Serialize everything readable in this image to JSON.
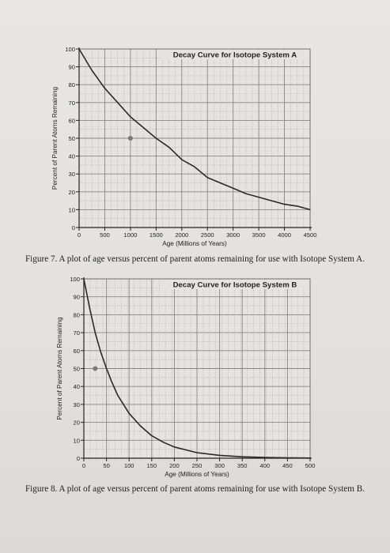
{
  "chart_data": [
    {
      "type": "line",
      "title": "Decay Curve for Isotope System A",
      "xlabel": "Age (Millions of Years)",
      "ylabel": "Percent of Parent Atoms Remaining",
      "xlim": [
        0,
        4500
      ],
      "ylim": [
        0,
        100
      ],
      "x_ticks": [
        "0",
        "500",
        "1000",
        "1500",
        "2000",
        "2500",
        "3000",
        "3500",
        "4000",
        "4500"
      ],
      "y_ticks": [
        "0",
        "10",
        "20",
        "30",
        "40",
        "50",
        "60",
        "70",
        "80",
        "90",
        "100"
      ],
      "grid": true,
      "x": [
        0,
        250,
        500,
        750,
        1000,
        1250,
        1500,
        1750,
        2000,
        2250,
        2500,
        2750,
        3000,
        3250,
        3500,
        3750,
        4000,
        4250,
        4500
      ],
      "y": [
        100,
        88,
        78,
        70,
        62,
        56,
        50,
        45,
        38,
        34,
        28,
        25,
        22,
        19,
        17,
        15,
        13,
        12,
        10
      ],
      "marker": {
        "x": 1000,
        "y": 50
      },
      "caption": "Figure 7.  A plot of age versus percent of parent atoms remaining for use with Isotope System A."
    },
    {
      "type": "line",
      "title": "Decay Curve for Isotope System B",
      "xlabel": "Age (Millions of Years)",
      "ylabel": "Percent of Parent Atoms Remaining",
      "xlim": [
        0,
        500
      ],
      "ylim": [
        0,
        100
      ],
      "x_ticks": [
        "0",
        "50",
        "100",
        "150",
        "200",
        "250",
        "300",
        "350",
        "400",
        "450",
        "500"
      ],
      "y_ticks": [
        "0",
        "10",
        "20",
        "30",
        "40",
        "50",
        "60",
        "70",
        "80",
        "90",
        "100"
      ],
      "grid": true,
      "x": [
        0,
        12.5,
        25,
        37.5,
        50,
        62.5,
        75,
        87.5,
        100,
        125,
        150,
        175,
        200,
        250,
        300,
        350,
        400,
        450,
        500
      ],
      "y": [
        100,
        84,
        70,
        59,
        50,
        42,
        35,
        30,
        25,
        18,
        12.5,
        9,
        6.25,
        3.1,
        1.6,
        0.8,
        0.4,
        0.2,
        0.1
      ],
      "marker": {
        "x": 25,
        "y": 50
      },
      "caption": "Figure 8.  A plot of age versus percent of parent atoms remaining for use with Isotope System B."
    }
  ]
}
